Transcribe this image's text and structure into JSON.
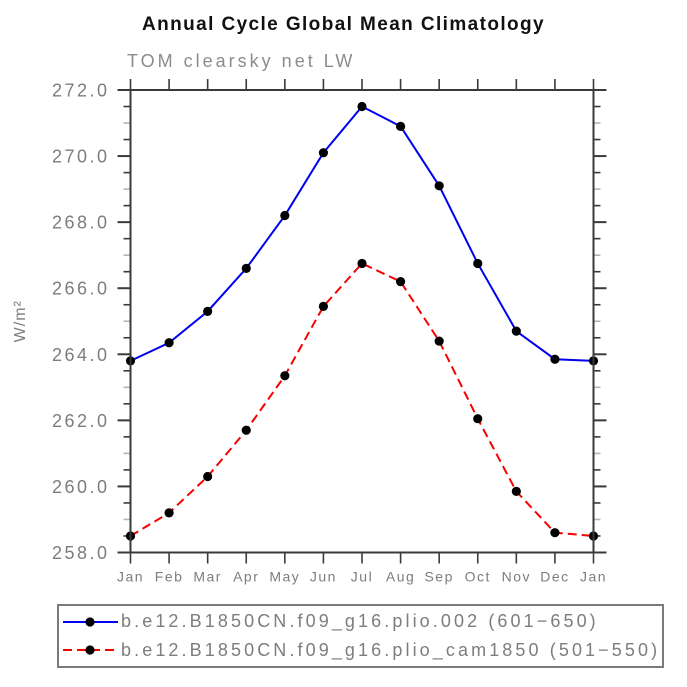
{
  "title": "Annual Cycle Global Mean Climatology",
  "subtitle": "TOM clearsky net LW",
  "chart_data": {
    "type": "line",
    "categories": [
      "Jan",
      "Feb",
      "Mar",
      "Apr",
      "May",
      "Jun",
      "Jul",
      "Aug",
      "Sep",
      "Oct",
      "Nov",
      "Dec",
      "Jan"
    ],
    "xlabel": "",
    "ylabel": "W/m²",
    "ylim": [
      258.0,
      272.0
    ],
    "ytick_major": 2.0,
    "ytick_minor": 0.5,
    "ytick_major_labels": [
      "258.0",
      "260.0",
      "262.0",
      "264.0",
      "266.0",
      "268.0",
      "270.0",
      "272.0"
    ],
    "grid": false,
    "legend_position": "bottom",
    "series": [
      {
        "name": "b.e12.B1850CN.f09_g16.plio.002 (601−650)",
        "color": "#0000f0",
        "style": "solid",
        "marker": "black-dot",
        "values": [
          263.8,
          264.35,
          265.3,
          266.6,
          268.2,
          270.1,
          271.5,
          270.9,
          269.1,
          266.75,
          264.7,
          263.85,
          263.8
        ]
      },
      {
        "name": "b.e12.B1850CN.f09_g16.plio_cam1850 (501−550)",
        "color": "#f80000",
        "style": "dashed",
        "marker": "black-dot",
        "values": [
          258.5,
          259.2,
          260.3,
          261.7,
          263.35,
          265.45,
          266.75,
          266.2,
          264.4,
          262.05,
          259.85,
          258.6,
          258.5
        ]
      }
    ],
    "marker_color": "#000000"
  }
}
